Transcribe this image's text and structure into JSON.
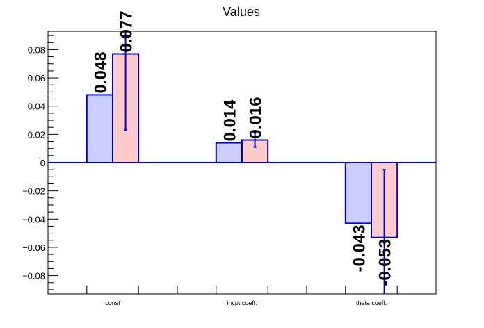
{
  "chart_data": {
    "type": "bar",
    "title": "Values",
    "xlabel": "",
    "ylabel": "",
    "categories": [
      "const",
      "invpt coeff.",
      "theta coeff."
    ],
    "series": [
      {
        "values": [
          0.048,
          0.014,
          -0.043
        ],
        "labels": [
          "0.048",
          "0.014",
          "-0.043"
        ],
        "color": "#ccccff"
      },
      {
        "values": [
          0.077,
          0.016,
          -0.053
        ],
        "labels": [
          "0.077",
          "0.016",
          "-0.053"
        ],
        "errors": [
          0.054,
          0.005,
          0.048
        ],
        "color": "#ffcccc"
      }
    ],
    "ylim": [
      -0.093,
      0.093
    ],
    "yticks": [
      -0.08,
      -0.06,
      -0.04,
      -0.02,
      0,
      0.02,
      0.04,
      0.06,
      0.08
    ],
    "ytick_labels": [
      "−0.08",
      "−0.06",
      "−0.04",
      "−0.02",
      "0",
      "0.02",
      "0.04",
      "0.06",
      "0.08"
    ],
    "grid": false,
    "colors": {
      "outline": "#0000cc",
      "axis": "#000000"
    }
  }
}
